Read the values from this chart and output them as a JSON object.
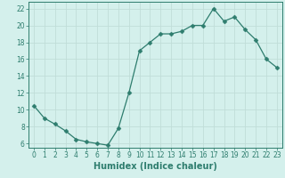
{
  "x": [
    0,
    1,
    2,
    3,
    4,
    5,
    6,
    7,
    8,
    9,
    10,
    11,
    12,
    13,
    14,
    15,
    16,
    17,
    18,
    19,
    20,
    21,
    22,
    23
  ],
  "y": [
    10.5,
    9.0,
    8.3,
    7.5,
    6.5,
    6.2,
    6.0,
    5.8,
    7.8,
    12.0,
    17.0,
    18.0,
    19.0,
    19.0,
    19.3,
    20.0,
    20.0,
    22.0,
    20.5,
    21.0,
    19.5,
    18.3,
    16.0,
    15.0
  ],
  "line_color": "#2e7d6e",
  "marker": "D",
  "marker_size": 2.5,
  "bg_color": "#d4f0ec",
  "grid_color": "#c0ddd8",
  "xlabel": "Humidex (Indice chaleur)",
  "ylim": [
    5.5,
    22.8
  ],
  "xlim": [
    -0.5,
    23.5
  ],
  "yticks": [
    6,
    8,
    10,
    12,
    14,
    16,
    18,
    20,
    22
  ],
  "xticks": [
    0,
    1,
    2,
    3,
    4,
    5,
    6,
    7,
    8,
    9,
    10,
    11,
    12,
    13,
    14,
    15,
    16,
    17,
    18,
    19,
    20,
    21,
    22,
    23
  ],
  "tick_label_fontsize": 5.5,
  "xlabel_fontsize": 7.0,
  "axis_color": "#2e7d6e",
  "spine_color": "#2e7d6e"
}
